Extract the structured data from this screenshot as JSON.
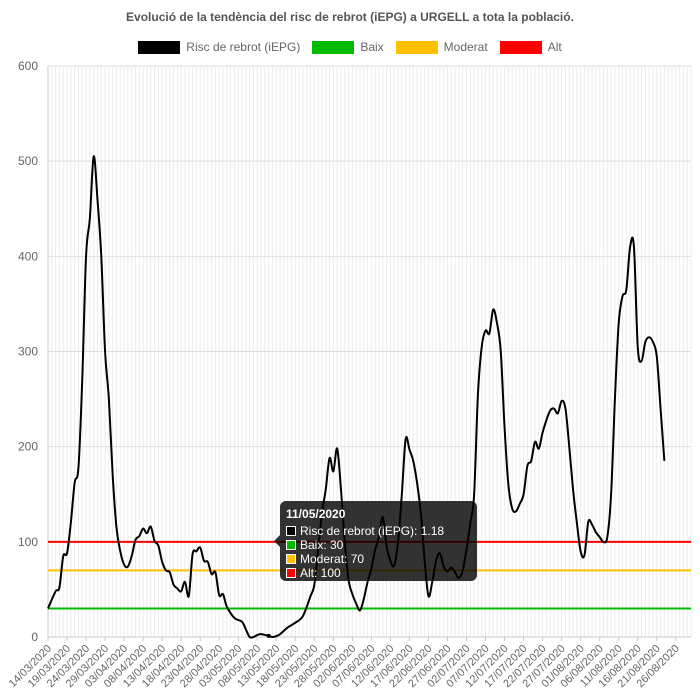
{
  "chart_data": {
    "type": "line",
    "title": "Evolució de la tendència del risc de rebrot (iEPG) a URGELL a tota la població.",
    "xlabel": "",
    "ylabel": "",
    "ylim": [
      0,
      600
    ],
    "yticks": [
      0,
      100,
      200,
      300,
      400,
      500,
      600
    ],
    "grid": true,
    "legend_position": "top",
    "x_tick_labels": [
      "14/03/2020",
      "19/03/2020",
      "24/03/2020",
      "29/03/2020",
      "03/04/2020",
      "08/04/2020",
      "13/04/2020",
      "18/04/2020",
      "23/04/2020",
      "28/04/2020",
      "03/05/2020",
      "08/05/2020",
      "13/05/2020",
      "18/05/2020",
      "23/05/2020",
      "28/05/2020",
      "02/06/2020",
      "07/06/2020",
      "12/06/2020",
      "17/06/2020",
      "22/06/2020",
      "27/06/2020",
      "02/07/2020",
      "07/07/2020",
      "12/07/2020",
      "17/07/2020",
      "22/07/2020",
      "27/07/2020",
      "01/08/2020",
      "06/08/2020",
      "11/08/2020",
      "16/08/2020",
      "21/08/2020",
      "26/08/2020"
    ],
    "x_start": "14/03/2020",
    "x_end": "30/08/2020",
    "series": [
      {
        "name": "Risc de rebrot (iEPG)",
        "color": "#000000",
        "points": [
          [
            "14/03/2020",
            30
          ],
          [
            "16/03/2020",
            48
          ],
          [
            "17/03/2020",
            52
          ],
          [
            "18/03/2020",
            85
          ],
          [
            "19/03/2020",
            88
          ],
          [
            "20/03/2020",
            120
          ],
          [
            "21/03/2020",
            162
          ],
          [
            "22/03/2020",
            178
          ],
          [
            "23/03/2020",
            270
          ],
          [
            "24/03/2020",
            400
          ],
          [
            "25/03/2020",
            440
          ],
          [
            "26/03/2020",
            505
          ],
          [
            "27/03/2020",
            460
          ],
          [
            "28/03/2020",
            400
          ],
          [
            "29/03/2020",
            300
          ],
          [
            "30/03/2020",
            250
          ],
          [
            "31/03/2020",
            170
          ],
          [
            "01/04/2020",
            115
          ],
          [
            "02/04/2020",
            90
          ],
          [
            "03/04/2020",
            76
          ],
          [
            "04/04/2020",
            74
          ],
          [
            "05/04/2020",
            85
          ],
          [
            "06/04/2020",
            102
          ],
          [
            "07/04/2020",
            106
          ],
          [
            "08/04/2020",
            114
          ],
          [
            "09/04/2020",
            109
          ],
          [
            "10/04/2020",
            116
          ],
          [
            "11/04/2020",
            101
          ],
          [
            "12/04/2020",
            96
          ],
          [
            "13/04/2020",
            79
          ],
          [
            "14/04/2020",
            70
          ],
          [
            "15/04/2020",
            68
          ],
          [
            "16/04/2020",
            55
          ],
          [
            "17/04/2020",
            51
          ],
          [
            "18/04/2020",
            48
          ],
          [
            "19/04/2020",
            58
          ],
          [
            "20/04/2020",
            43
          ],
          [
            "21/04/2020",
            87
          ],
          [
            "22/04/2020",
            90
          ],
          [
            "23/04/2020",
            94
          ],
          [
            "24/04/2020",
            80
          ],
          [
            "25/04/2020",
            79
          ],
          [
            "26/04/2020",
            66
          ],
          [
            "27/04/2020",
            68
          ],
          [
            "28/04/2020",
            44
          ],
          [
            "29/04/2020",
            45
          ],
          [
            "30/04/2020",
            32
          ],
          [
            "02/05/2020",
            20
          ],
          [
            "04/05/2020",
            16
          ],
          [
            "05/05/2020",
            8
          ],
          [
            "06/05/2020",
            0
          ],
          [
            "07/05/2020",
            0
          ],
          [
            "08/05/2020",
            2
          ],
          [
            "09/05/2020",
            3
          ],
          [
            "11/05/2020",
            1.18
          ],
          [
            "12/05/2020",
            0
          ],
          [
            "13/05/2020",
            1
          ],
          [
            "14/05/2020",
            3
          ],
          [
            "16/05/2020",
            10
          ],
          [
            "18/05/2020",
            15
          ],
          [
            "20/05/2020",
            22
          ],
          [
            "22/05/2020",
            43
          ],
          [
            "23/05/2020",
            55
          ],
          [
            "24/05/2020",
            92
          ],
          [
            "25/05/2020",
            130
          ],
          [
            "26/05/2020",
            155
          ],
          [
            "27/05/2020",
            188
          ],
          [
            "28/05/2020",
            174
          ],
          [
            "29/05/2020",
            198
          ],
          [
            "30/05/2020",
            155
          ],
          [
            "31/05/2020",
            100
          ],
          [
            "01/06/2020",
            60
          ],
          [
            "02/06/2020",
            45
          ],
          [
            "03/06/2020",
            35
          ],
          [
            "04/06/2020",
            28
          ],
          [
            "05/06/2020",
            40
          ],
          [
            "06/06/2020",
            58
          ],
          [
            "07/06/2020",
            72
          ],
          [
            "08/06/2020",
            92
          ],
          [
            "09/06/2020",
            105
          ],
          [
            "10/06/2020",
            126
          ],
          [
            "11/06/2020",
            95
          ],
          [
            "12/06/2020",
            80
          ],
          [
            "13/06/2020",
            75
          ],
          [
            "14/06/2020",
            100
          ],
          [
            "15/06/2020",
            150
          ],
          [
            "16/06/2020",
            208
          ],
          [
            "17/06/2020",
            197
          ],
          [
            "18/06/2020",
            185
          ],
          [
            "19/06/2020",
            162
          ],
          [
            "20/06/2020",
            130
          ],
          [
            "21/06/2020",
            80
          ],
          [
            "22/06/2020",
            43
          ],
          [
            "23/06/2020",
            58
          ],
          [
            "24/06/2020",
            80
          ],
          [
            "25/06/2020",
            88
          ],
          [
            "26/06/2020",
            74
          ],
          [
            "27/06/2020",
            69
          ],
          [
            "28/06/2020",
            73
          ],
          [
            "29/06/2020",
            68
          ],
          [
            "30/06/2020",
            62
          ],
          [
            "01/07/2020",
            70
          ],
          [
            "02/07/2020",
            92
          ],
          [
            "03/07/2020",
            120
          ],
          [
            "04/07/2020",
            150
          ],
          [
            "05/07/2020",
            255
          ],
          [
            "06/07/2020",
            305
          ],
          [
            "07/07/2020",
            322
          ],
          [
            "08/07/2020",
            319
          ],
          [
            "09/07/2020",
            344
          ],
          [
            "10/07/2020",
            330
          ],
          [
            "11/07/2020",
            300
          ],
          [
            "12/07/2020",
            220
          ],
          [
            "13/07/2020",
            160
          ],
          [
            "14/07/2020",
            135
          ],
          [
            "15/07/2020",
            132
          ],
          [
            "16/07/2020",
            140
          ],
          [
            "17/07/2020",
            150
          ],
          [
            "18/07/2020",
            180
          ],
          [
            "19/07/2020",
            185
          ],
          [
            "20/07/2020",
            205
          ],
          [
            "21/07/2020",
            198
          ],
          [
            "22/07/2020",
            215
          ],
          [
            "23/07/2020",
            228
          ],
          [
            "24/07/2020",
            238
          ],
          [
            "25/07/2020",
            240
          ],
          [
            "26/07/2020",
            235
          ],
          [
            "27/07/2020",
            248
          ],
          [
            "28/07/2020",
            240
          ],
          [
            "29/07/2020",
            200
          ],
          [
            "30/07/2020",
            155
          ],
          [
            "31/07/2020",
            120
          ],
          [
            "01/08/2020",
            90
          ],
          [
            "02/08/2020",
            86
          ],
          [
            "03/08/2020",
            121
          ],
          [
            "04/08/2020",
            118
          ],
          [
            "05/08/2020",
            110
          ],
          [
            "06/08/2020",
            105
          ],
          [
            "07/08/2020",
            100
          ],
          [
            "08/08/2020",
            105
          ],
          [
            "09/08/2020",
            150
          ],
          [
            "10/08/2020",
            250
          ],
          [
            "11/08/2020",
            330
          ],
          [
            "12/08/2020",
            358
          ],
          [
            "13/08/2020",
            365
          ],
          [
            "14/08/2020",
            410
          ],
          [
            "15/08/2020",
            410
          ],
          [
            "16/08/2020",
            305
          ],
          [
            "17/08/2020",
            290
          ],
          [
            "18/08/2020",
            310
          ],
          [
            "19/08/2020",
            315
          ],
          [
            "20/08/2020",
            310
          ],
          [
            "21/08/2020",
            295
          ],
          [
            "22/08/2020",
            240
          ],
          [
            "23/08/2020",
            185
          ]
        ]
      },
      {
        "name": "Baix",
        "color": "#00bb00",
        "value": 30
      },
      {
        "name": "Moderat",
        "color": "#ffc000",
        "value": 70
      },
      {
        "name": "Alt",
        "color": "#ff0000",
        "value": 100
      }
    ]
  },
  "tooltip": {
    "date": "11/05/2020",
    "rows": [
      {
        "text": "Risc de rebrot (iEPG): 1.18",
        "color": "#000000"
      },
      {
        "text": "Baix: 30",
        "color": "#00bb00"
      },
      {
        "text": "Moderat: 70",
        "color": "#ffc000"
      },
      {
        "text": "Alt: 100",
        "color": "#ff0000"
      }
    ]
  }
}
